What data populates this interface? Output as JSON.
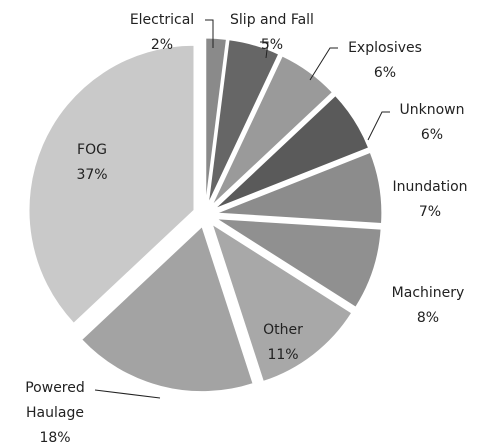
{
  "chart_data": {
    "type": "pie",
    "categories": [
      "Electrical",
      "Slip and Fall",
      "Explosives",
      "Unknown",
      "Inundation",
      "Machinery",
      "Other",
      "Powered Haulage",
      "FOG"
    ],
    "values": [
      2,
      5,
      6,
      6,
      7,
      8,
      11,
      18,
      37
    ],
    "value_labels": [
      "2%",
      "5%",
      "6%",
      "6%",
      "7%",
      "8%",
      "11%",
      "18%",
      "37%"
    ],
    "colors": [
      "#8a8a8a",
      "#666666",
      "#9a9a9a",
      "#5a5a5a",
      "#8c8c8c",
      "#909090",
      "#a8a8a8",
      "#a3a3a3",
      "#c9c9c9"
    ]
  }
}
